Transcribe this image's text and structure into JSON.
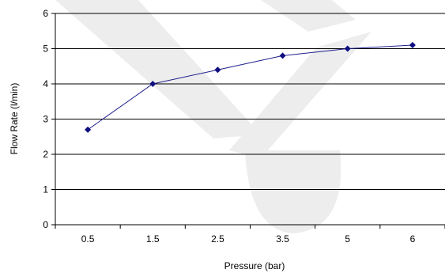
{
  "chart_data": {
    "type": "line",
    "title": "",
    "xlabel": "Pressure (bar)",
    "ylabel": "Flow Rate (l/min)",
    "categories": [
      "0.5",
      "1.5",
      "2.5",
      "3.5",
      "5",
      "6"
    ],
    "series": [
      {
        "values": [
          2.7,
          4.0,
          4.4,
          4.8,
          5.0,
          5.1
        ]
      }
    ],
    "ylim": [
      0,
      6
    ],
    "yticks": [
      0,
      1,
      2,
      3,
      4,
      5,
      6
    ],
    "grid": "horizontal",
    "legend": "none",
    "marker": "diamond",
    "colors": {
      "series": "#1f1f8f",
      "marker": "#0d0d80",
      "grid": "#000000",
      "axis": "#000000",
      "watermark": "#ededed"
    }
  }
}
